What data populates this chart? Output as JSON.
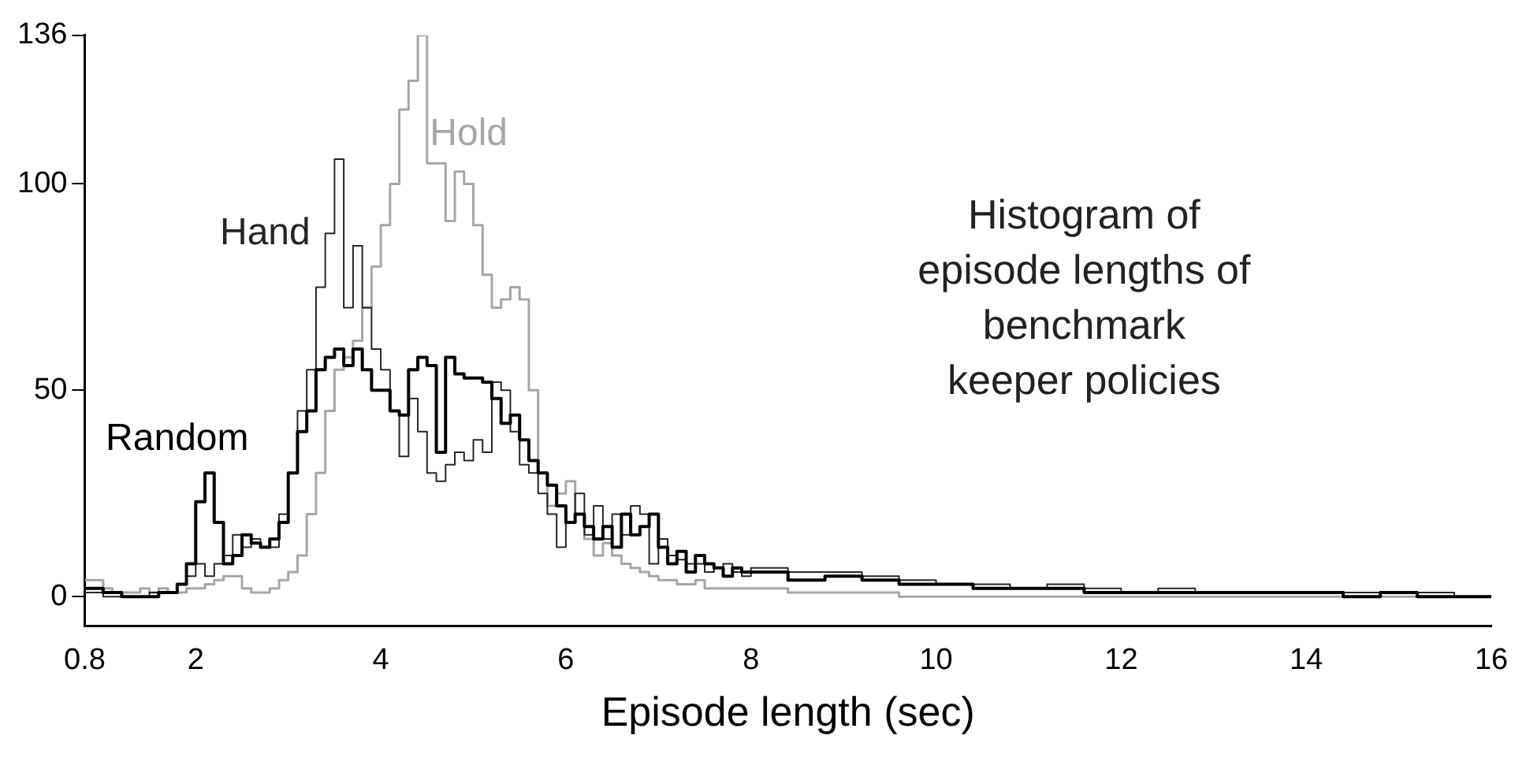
{
  "chart_data": {
    "type": "histogram",
    "title": "Histogram of episode lengths of benchmark keeper policies",
    "xlabel": "Episode length (sec)",
    "bins": [
      0.8,
      0.9,
      1.0,
      1.1,
      1.2,
      1.3,
      1.4,
      1.5,
      1.6,
      1.7,
      1.8,
      1.9,
      2.0,
      2.1,
      2.2,
      2.3,
      2.4,
      2.5,
      2.6,
      2.7,
      2.8,
      2.9,
      3.0,
      3.1,
      3.2,
      3.3,
      3.4,
      3.5,
      3.6,
      3.7,
      3.8,
      3.9,
      4.0,
      4.1,
      4.2,
      4.3,
      4.4,
      4.5,
      4.6,
      4.7,
      4.8,
      4.9,
      5.0,
      5.1,
      5.2,
      5.3,
      5.4,
      5.5,
      5.6,
      5.7,
      5.8,
      5.9,
      6.0,
      6.1,
      6.2,
      6.3,
      6.4,
      6.5,
      6.6,
      6.7,
      6.8,
      6.9,
      7.0,
      7.1,
      7.2,
      7.3,
      7.4,
      7.5,
      7.6,
      7.7,
      7.8,
      7.9,
      8.0,
      8.4,
      8.8,
      9.2,
      9.6,
      10.0,
      10.4,
      10.8,
      11.2,
      11.6,
      12.0,
      12.4,
      12.8,
      13.2,
      13.6,
      14.0,
      14.4,
      14.8,
      15.2,
      15.6,
      16.0
    ],
    "series": [
      {
        "name": "Random",
        "color": "#000000",
        "values": [
          2,
          2,
          1,
          1,
          0,
          0,
          0,
          0,
          1,
          1,
          3,
          8,
          23,
          30,
          18,
          8,
          10,
          15,
          13,
          12,
          14,
          18,
          30,
          40,
          45,
          55,
          58,
          60,
          56,
          60,
          55,
          50,
          50,
          45,
          44,
          55,
          58,
          56,
          35,
          58,
          54,
          53,
          53,
          52,
          48,
          42,
          44,
          38,
          33,
          30,
          27,
          22,
          18,
          20,
          17,
          14,
          17,
          12,
          20,
          15,
          17,
          20,
          12,
          8,
          11,
          6,
          10,
          8,
          7,
          5,
          7,
          6,
          6,
          4,
          5,
          4,
          3,
          3,
          2,
          2,
          2,
          1,
          1,
          1,
          1,
          1,
          1,
          1,
          0,
          1,
          0,
          0
        ]
      },
      {
        "name": "Hand",
        "color": "#262626",
        "values": [
          1,
          1,
          0,
          0,
          0,
          0,
          0,
          1,
          1,
          1,
          3,
          5,
          8,
          5,
          8,
          10,
          15,
          12,
          14,
          12,
          12,
          20,
          30,
          45,
          55,
          75,
          88,
          106,
          70,
          85,
          70,
          60,
          55,
          45,
          34,
          48,
          40,
          30,
          28,
          32,
          35,
          33,
          38,
          35,
          52,
          50,
          40,
          32,
          30,
          25,
          20,
          12,
          18,
          25,
          15,
          22,
          14,
          20,
          15,
          22,
          20,
          8,
          14,
          10,
          9,
          8,
          8,
          6,
          7,
          8,
          6,
          5,
          7,
          6,
          6,
          5,
          4,
          3,
          3,
          2,
          3,
          2,
          1,
          2,
          1,
          1,
          1,
          1,
          1,
          1,
          1,
          0
        ]
      },
      {
        "name": "Hold",
        "color": "#a6a6a6",
        "values": [
          4,
          4,
          2,
          1,
          1,
          1,
          2,
          1,
          2,
          1,
          1,
          2,
          2,
          3,
          4,
          5,
          5,
          2,
          1,
          1,
          2,
          4,
          6,
          10,
          20,
          30,
          45,
          55,
          58,
          62,
          70,
          80,
          90,
          100,
          118,
          125,
          136,
          105,
          105,
          91,
          103,
          100,
          90,
          78,
          70,
          72,
          75,
          72,
          50,
          30,
          22,
          25,
          28,
          20,
          14,
          10,
          13,
          10,
          8,
          7,
          6,
          5,
          4,
          4,
          3,
          3,
          4,
          2,
          2,
          2,
          2,
          2,
          2,
          1,
          1,
          1,
          0,
          0,
          0,
          0,
          0,
          0,
          0,
          0,
          0,
          0,
          0,
          0,
          0,
          0,
          0,
          0
        ]
      }
    ],
    "xlim": [
      0.8,
      16
    ],
    "xticks": [
      0.8,
      2,
      4,
      6,
      8,
      10,
      12,
      14,
      16
    ],
    "ylim": [
      -7,
      136
    ],
    "yticks": [
      0,
      50,
      100,
      136
    ],
    "grid": false,
    "legend": false
  }
}
